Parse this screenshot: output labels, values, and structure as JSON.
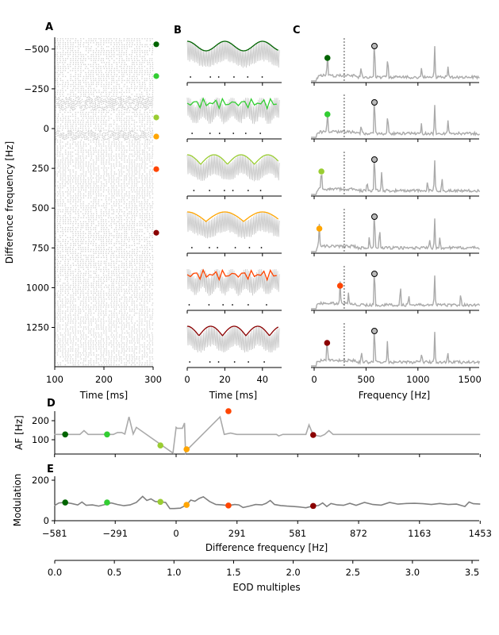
{
  "colors": [
    "#006400",
    "#32cd32",
    "#9acd32",
    "#ffa500",
    "#ff4500",
    "#8b0000"
  ],
  "gray": "#aaaaaa",
  "chart_data": [
    {
      "panel": "A",
      "type": "scatter",
      "xlabel": "Time [ms]",
      "ylabel": "Difference frequency [Hz]",
      "xlim": [
        100,
        300
      ],
      "ylim": [
        1497,
        -574
      ],
      "xticks": [
        "100",
        "200",
        "300"
      ],
      "yticks": [
        "−500",
        "−250",
        "0",
        "250",
        "500",
        "750",
        "1000",
        "1250"
      ],
      "ytick_values": [
        -500,
        -250,
        0,
        250,
        500,
        750,
        1000,
        1250
      ],
      "xtick_values": [
        100,
        200,
        300
      ],
      "marker_df": [
        -530,
        -330,
        -70,
        50,
        255,
        655
      ]
    },
    {
      "panel": "B",
      "type": "line",
      "xlabel": "Time [ms]",
      "xlim": [
        0,
        50
      ],
      "xticks": [
        "0",
        "20",
        "40"
      ],
      "xtick_values": [
        0,
        20,
        40
      ],
      "rows": 6
    },
    {
      "panel": "C",
      "type": "line",
      "xlabel": "Frequency [Hz]",
      "xlim": [
        -30,
        1600
      ],
      "xticks": [
        "0",
        "500",
        "1000",
        "1500"
      ],
      "xtick_values": [
        0,
        500,
        1000,
        1500
      ],
      "eod_frequency": 581,
      "dashed_line": 290,
      "af_marker_freq": [
        128,
        128,
        70,
        50,
        250,
        125
      ]
    },
    {
      "panel": "D",
      "type": "line",
      "ylabel": "AF [Hz]",
      "xlim": [
        -581,
        1453
      ],
      "ylim": [
        25,
        260
      ],
      "yticks": [
        "100",
        "200"
      ],
      "ytick_values": [
        100,
        200
      ],
      "x": [
        -581,
        -460,
        -440,
        -420,
        -330,
        -300,
        -280,
        -260,
        -245,
        -225,
        -205,
        -190,
        -15,
        0,
        5,
        30,
        40,
        45,
        60,
        210,
        230,
        260,
        290,
        480,
        490,
        510,
        620,
        635,
        655,
        690,
        710,
        730,
        750,
        1453
      ],
      "y": [
        128,
        128,
        148,
        128,
        128,
        128,
        138,
        138,
        130,
        220,
        130,
        165,
        30,
        165,
        160,
        160,
        188,
        30,
        55,
        220,
        128,
        135,
        128,
        128,
        120,
        128,
        128,
        178,
        125,
        118,
        128,
        148,
        128,
        128
      ],
      "markers": {
        "x": [
          -530,
          -330,
          -75,
          50,
          250,
          655
        ],
        "y": [
          128,
          128,
          70,
          50,
          250,
          125
        ]
      }
    },
    {
      "panel": "E",
      "type": "line",
      "ylabel": "Modulation",
      "xlabel": "Difference frequency [Hz]",
      "xlim": [
        -581,
        1453
      ],
      "ylim": [
        0,
        220
      ],
      "yticks": [
        "0",
        "200"
      ],
      "ytick_values": [
        0,
        200
      ],
      "xticks": [
        "−581",
        "−291",
        "0",
        "291",
        "581",
        "872",
        "1163",
        "1453"
      ],
      "xtick_values": [
        -581,
        -291,
        0,
        291,
        581,
        872,
        1163,
        1453
      ],
      "x": [
        -581,
        -560,
        -530,
        -500,
        -470,
        -450,
        -430,
        -400,
        -370,
        -340,
        -310,
        -280,
        -250,
        -220,
        -190,
        -160,
        -140,
        -120,
        -100,
        -75,
        -50,
        -30,
        -10,
        20,
        50,
        70,
        90,
        110,
        130,
        160,
        190,
        220,
        250,
        280,
        300,
        320,
        350,
        380,
        410,
        430,
        450,
        470,
        500,
        530,
        560,
        590,
        620,
        655,
        680,
        700,
        720,
        740,
        770,
        800,
        830,
        860,
        900,
        940,
        980,
        1020,
        1060,
        1100,
        1140,
        1180,
        1220,
        1260,
        1300,
        1340,
        1380,
        1400,
        1420,
        1453
      ],
      "y": [
        75,
        88,
        90,
        85,
        78,
        92,
        76,
        78,
        72,
        80,
        88,
        80,
        74,
        78,
        90,
        120,
        100,
        108,
        95,
        93,
        90,
        60,
        60,
        62,
        78,
        102,
        96,
        110,
        118,
        95,
        80,
        78,
        75,
        80,
        78,
        65,
        72,
        80,
        78,
        86,
        100,
        80,
        75,
        72,
        70,
        68,
        64,
        73,
        75,
        88,
        70,
        85,
        78,
        76,
        86,
        76,
        90,
        80,
        77,
        90,
        82,
        85,
        86,
        84,
        80,
        85,
        80,
        82,
        70,
        92,
        84,
        82
      ],
      "markers": {
        "x": [
          -530,
          -330,
          -75,
          50,
          250,
          655
        ],
        "y": [
          90,
          90,
          93,
          78,
          75,
          73
        ]
      }
    },
    {
      "panel": "EOD",
      "type": "axis",
      "xlabel": "EOD multiples",
      "xlim": [
        0,
        3.56
      ],
      "xticks": [
        "0.0",
        "0.5",
        "1.0",
        "1.5",
        "2.0",
        "2.5",
        "3.0",
        "3.5"
      ],
      "xtick_values": [
        0,
        0.5,
        1,
        1.5,
        2,
        2.5,
        3,
        3.5
      ]
    }
  ],
  "panel_letters": [
    "A",
    "B",
    "C",
    "D",
    "E"
  ]
}
